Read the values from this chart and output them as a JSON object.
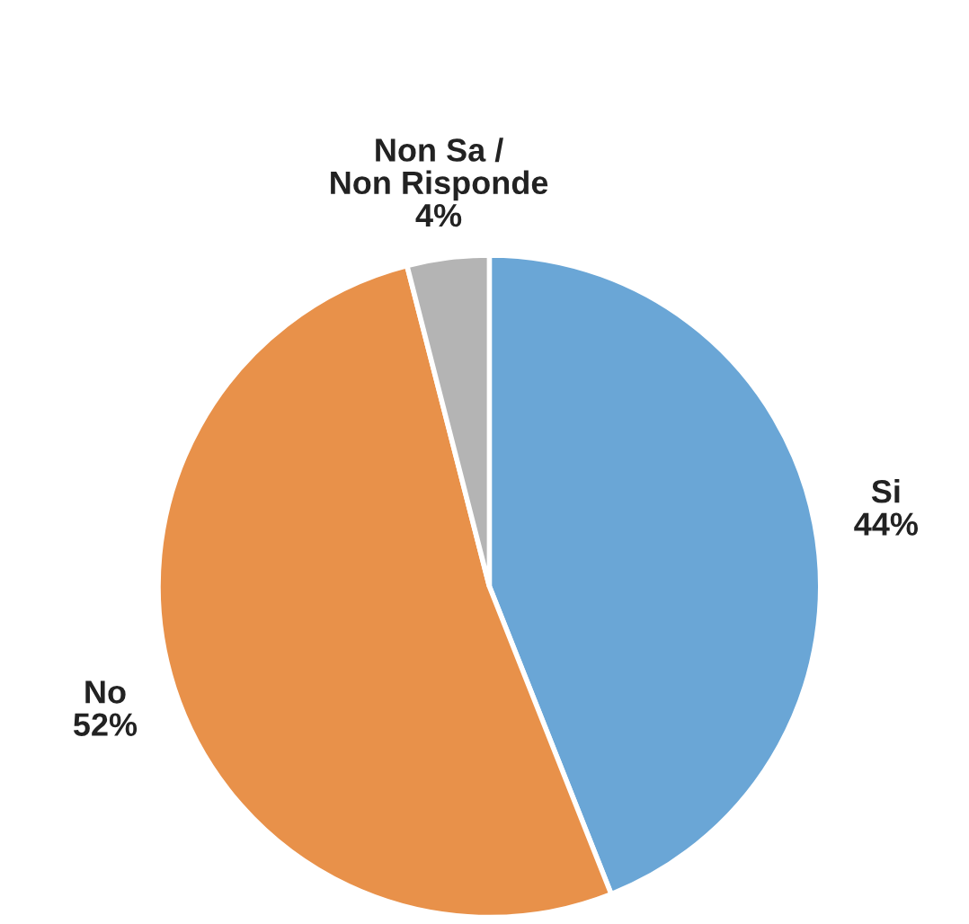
{
  "chart_data": {
    "type": "pie",
    "categories": [
      "Si",
      "No",
      "Non Sa /\nNon Risponde"
    ],
    "values": [
      44,
      52,
      4
    ],
    "value_labels": [
      "44%",
      "52%",
      "4%"
    ],
    "colors": [
      "#6aa6d6",
      "#e8914a",
      "#b4b4b4"
    ],
    "legend": false
  }
}
